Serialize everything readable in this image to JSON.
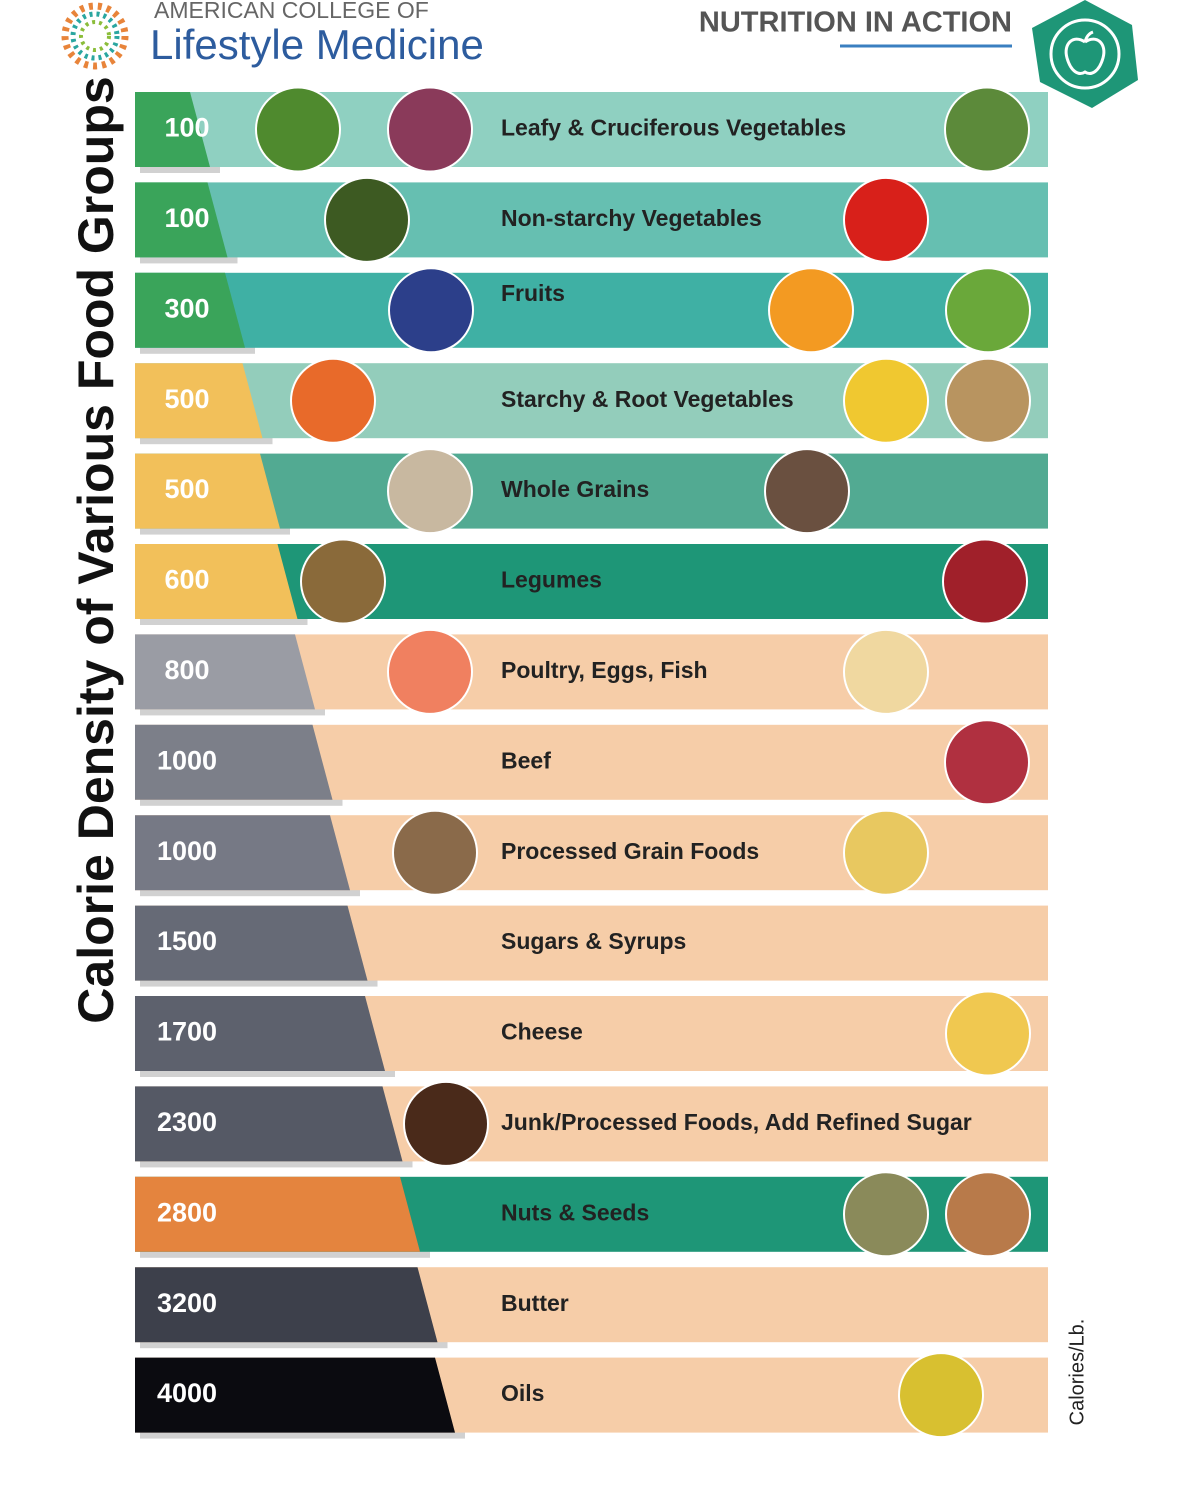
{
  "header": {
    "org_line1": "AMERICAN COLLEGE OF",
    "org_line2": "Lifestyle Medicine",
    "badge": "NUTRITION IN ACTION"
  },
  "side_title": "Calorie Density of Various Food Groups",
  "unit": "Calories/Lb.",
  "rows": [
    {
      "value": "100",
      "label": "Leafy & Cruciferous Vegetables",
      "band_color": "#8fd0c1",
      "label_color": "#3aa45a"
    },
    {
      "value": "100",
      "label": "Non-starchy Vegetables",
      "band_color": "#66bfb1",
      "label_color": "#3aa45a"
    },
    {
      "value": "300",
      "label": "Fruits",
      "band_color": "#3fb0a4",
      "label_color": "#3aa45a"
    },
    {
      "value": "500",
      "label": "Starchy & Root Vegetables",
      "band_color": "#93cdbb",
      "label_color": "#f2c05a"
    },
    {
      "value": "500",
      "label": "Whole Grains",
      "band_color": "#52aa92",
      "label_color": "#f2c05a"
    },
    {
      "value": "600",
      "label": "Legumes",
      "band_color": "#1e9677",
      "label_color": "#f2c05a"
    },
    {
      "value": "800",
      "label": "Poultry, Eggs, Fish",
      "band_color": "#f6cda8",
      "label_color": "#9a9ca4"
    },
    {
      "value": "1000",
      "label": "Beef",
      "band_color": "#f6cda8",
      "label_color": "#7c7f89"
    },
    {
      "value": "1000",
      "label": "Processed Grain Foods",
      "band_color": "#f6cda8",
      "label_color": "#767985"
    },
    {
      "value": "1500",
      "label": "Sugars & Syrups",
      "band_color": "#f6cda8",
      "label_color": "#666a76"
    },
    {
      "value": "1700",
      "label": "Cheese",
      "band_color": "#f6cda8",
      "label_color": "#5d616d"
    },
    {
      "value": "2300",
      "label": "Junk/Processed Foods, Add Refined Sugar",
      "band_color": "#f6cda8",
      "label_color": "#555965"
    },
    {
      "value": "2800",
      "label": "Nuts & Seeds",
      "band_color": "#1e9677",
      "label_color": "#e4843e"
    },
    {
      "value": "3200",
      "label": "Butter",
      "band_color": "#f6cda8",
      "label_color": "#3d404b"
    },
    {
      "value": "4000",
      "label": "Oils",
      "band_color": "#f6cda8",
      "label_color": "#0b0b10"
    }
  ]
}
